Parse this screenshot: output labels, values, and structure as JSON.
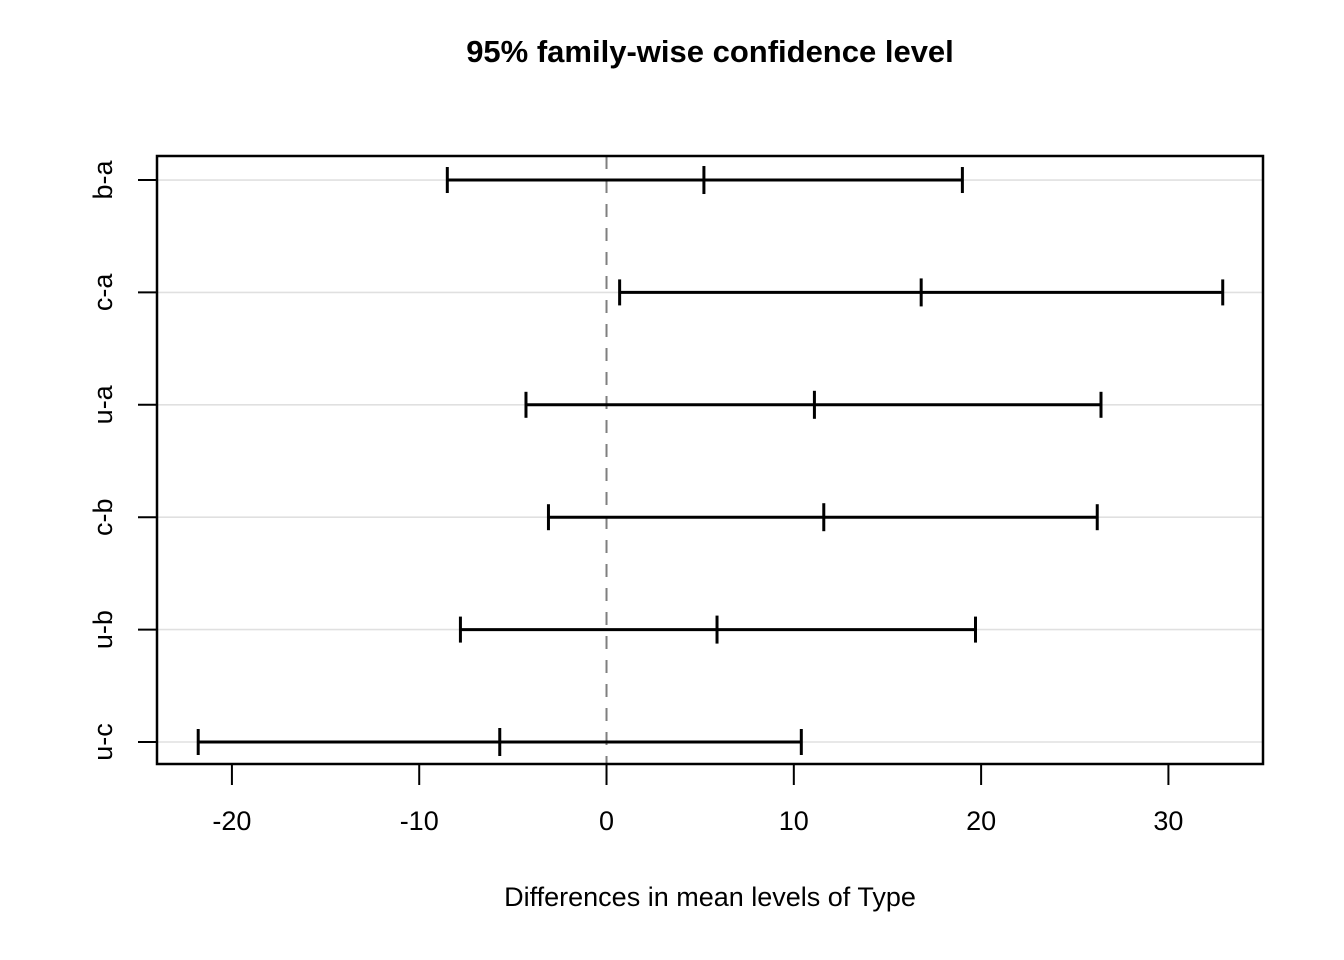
{
  "chart_data": {
    "type": "interval",
    "title": "95% family-wise confidence level",
    "xlabel": "Differences in mean levels of Type",
    "rows": [
      {
        "label": "b-a",
        "lower": -8.5,
        "diff": 5.2,
        "upper": 19.0
      },
      {
        "label": "c-a",
        "lower": 0.7,
        "diff": 16.8,
        "upper": 32.9
      },
      {
        "label": "u-a",
        "lower": -4.3,
        "diff": 11.1,
        "upper": 26.4
      },
      {
        "label": "c-b",
        "lower": -3.1,
        "diff": 11.6,
        "upper": 26.2
      },
      {
        "label": "u-b",
        "lower": -7.8,
        "diff": 5.9,
        "upper": 19.7
      },
      {
        "label": "u-c",
        "lower": -21.8,
        "diff": -5.7,
        "upper": 10.4
      }
    ],
    "x_ticks": [
      -20,
      -10,
      0,
      10,
      20,
      30
    ],
    "xlim": [
      -24.0,
      35.05
    ],
    "zero_line_x": 0,
    "grid": true,
    "legend": "none",
    "layout_hints": {
      "y_first_frac": 0.0395,
      "y_last_frac": 0.9638
    }
  },
  "colors": {
    "line": "#000000",
    "grid": "#e0e0e0",
    "zero_dash": "#7f7f7f",
    "text": "#000000",
    "background": "#ffffff"
  }
}
